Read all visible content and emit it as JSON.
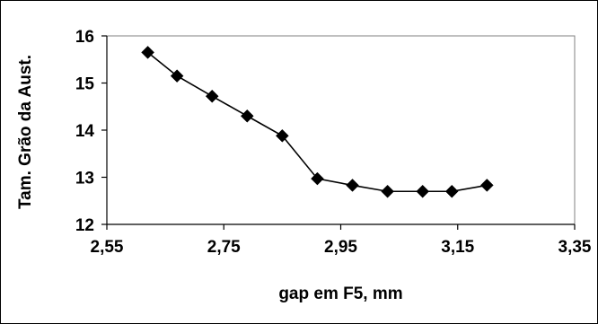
{
  "chart_data": {
    "type": "line",
    "title": "",
    "xlabel": "gap em F5, mm",
    "ylabel": "Tam. Grão da Aust.",
    "xlim": [
      2.55,
      3.35
    ],
    "ylim": [
      12,
      16
    ],
    "xticks": [
      "2,55",
      "2,75",
      "2,95",
      "3,15",
      "3,35"
    ],
    "yticks": [
      "12",
      "13",
      "14",
      "15",
      "16"
    ],
    "grid": false,
    "legend": "none",
    "marker": "diamond",
    "line_color": "#000000",
    "series": [
      {
        "x": [
          2.62,
          2.67,
          2.73,
          2.79,
          2.85,
          2.91,
          2.97,
          3.03,
          3.09,
          3.14,
          3.2
        ],
        "y": [
          15.65,
          15.15,
          14.72,
          14.3,
          13.88,
          12.97,
          12.83,
          12.7,
          12.7,
          12.7,
          12.83
        ]
      }
    ]
  }
}
